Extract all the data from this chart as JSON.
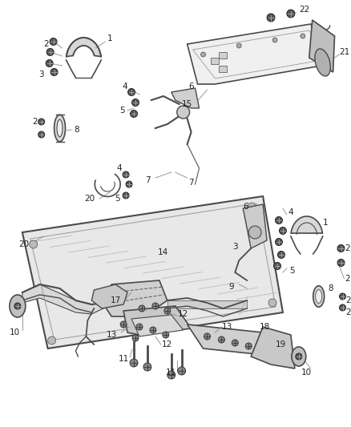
{
  "bg": "#f5f5f5",
  "lc": "#4a4a4a",
  "tc": "#222222",
  "fig_w": 4.38,
  "fig_h": 5.33,
  "dpi": 100
}
